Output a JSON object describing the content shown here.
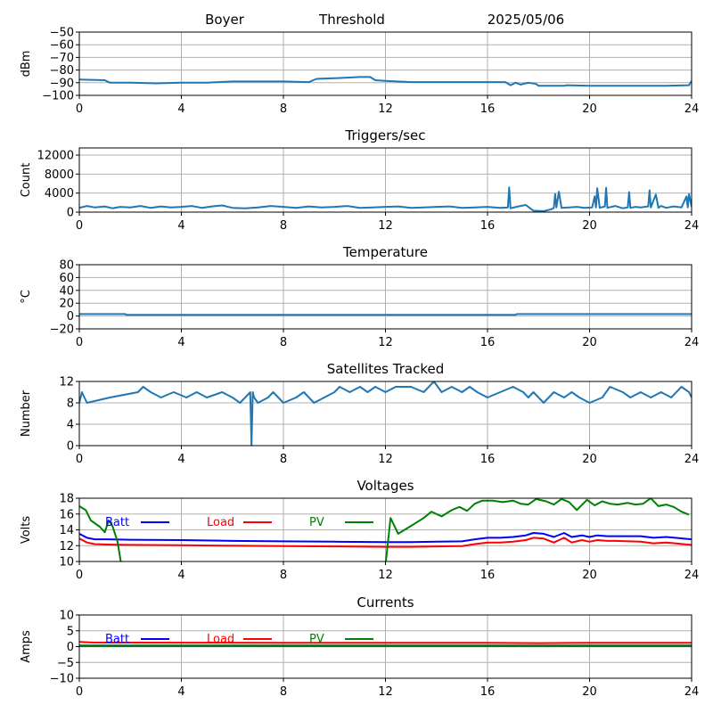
{
  "header": {
    "site": "Boyer",
    "mode": "Threshold",
    "date": "2025/05/06"
  },
  "chart_data": [
    {
      "id": "threshold",
      "type": "line",
      "title": "",
      "xlabel": "",
      "ylabel": "dBm",
      "xlim": [
        0,
        24
      ],
      "ylim": [
        -100,
        -50
      ],
      "xticks": [
        0,
        4,
        8,
        12,
        16,
        20,
        24
      ],
      "yticks": [
        -100,
        -90,
        -80,
        -70,
        -60,
        -50
      ],
      "grid": true,
      "series": [
        {
          "color": "#1f77b4",
          "x": [
            0,
            1,
            1.2,
            2,
            3,
            4,
            5,
            6,
            7,
            8,
            9,
            9.3,
            10,
            10.5,
            11,
            11.4,
            11.6,
            12,
            13,
            14,
            15,
            16,
            16.7,
            16.9,
            17.1,
            17.3,
            17.6,
            17.9,
            18,
            19,
            19.1,
            20,
            21,
            22,
            23,
            23.9,
            24
          ],
          "y": [
            -87.5,
            -88,
            -90,
            -90,
            -90.5,
            -90,
            -90,
            -89,
            -89,
            -89,
            -89.5,
            -87,
            -86.5,
            -86,
            -85.5,
            -85.5,
            -88,
            -88.5,
            -89.5,
            -89.5,
            -89.5,
            -89.5,
            -89.5,
            -92,
            -90,
            -91.5,
            -90,
            -91,
            -92.5,
            -92.5,
            -92,
            -92.5,
            -92.5,
            -92.5,
            -92.5,
            -92,
            -88.5
          ]
        }
      ]
    },
    {
      "id": "triggers",
      "type": "line",
      "title": "Triggers/sec",
      "xlabel": "",
      "ylabel": "Count",
      "xlim": [
        0,
        24
      ],
      "ylim": [
        0,
        13500
      ],
      "xticks": [
        0,
        4,
        8,
        12,
        16,
        20,
        24
      ],
      "yticks": [
        0,
        4000,
        8000,
        12000
      ],
      "grid": true,
      "series": [
        {
          "color": "#1f77b4",
          "x": [
            0,
            0.3,
            0.6,
            1,
            1.3,
            1.6,
            2,
            2.4,
            2.8,
            3.2,
            3.6,
            4,
            4.4,
            4.8,
            5.2,
            5.6,
            6,
            6.5,
            7,
            7.5,
            8,
            8.5,
            9,
            9.5,
            10,
            10.5,
            11,
            11.5,
            12,
            12.5,
            13,
            13.5,
            14,
            14.5,
            15,
            15.5,
            16,
            16.5,
            16.8,
            16.85,
            16.9,
            17.2,
            17.5,
            17.8,
            18.2,
            18.5,
            18.6,
            18.65,
            18.7,
            18.8,
            18.9,
            19.2,
            19.5,
            19.8,
            20.1,
            20.2,
            20.25,
            20.3,
            20.4,
            20.6,
            20.65,
            20.7,
            21,
            21.3,
            21.5,
            21.55,
            21.6,
            21.8,
            22,
            22.3,
            22.35,
            22.4,
            22.6,
            22.7,
            22.75,
            22.8,
            23,
            23.3,
            23.6,
            23.8,
            23.85,
            23.9,
            24
          ],
          "y": [
            900,
            1300,
            1000,
            1200,
            800,
            1100,
            1000,
            1300,
            900,
            1200,
            1000,
            1100,
            1300,
            900,
            1200,
            1400,
            900,
            800,
            1000,
            1300,
            1100,
            900,
            1200,
            1000,
            1100,
            1300,
            900,
            1000,
            1100,
            1200,
            900,
            1000,
            1100,
            1200,
            900,
            1000,
            1100,
            900,
            1000,
            5200,
            800,
            1200,
            1500,
            300,
            200,
            600,
            900,
            3800,
            1000,
            4300,
            900,
            1000,
            1100,
            900,
            1000,
            3300,
            1000,
            5000,
            900,
            1200,
            5100,
            900,
            1300,
            800,
            1000,
            4200,
            900,
            1100,
            1000,
            1200,
            4600,
            1000,
            3700,
            900,
            1100,
            1300,
            900,
            1200,
            1000,
            3300,
            1000,
            3800,
            1100
          ]
        }
      ]
    },
    {
      "id": "temperature",
      "type": "line",
      "title": "Temperature",
      "xlabel": "",
      "ylabel": "°C",
      "xlim": [
        0,
        24
      ],
      "ylim": [
        -20,
        80
      ],
      "xticks": [
        0,
        4,
        8,
        12,
        16,
        20,
        24
      ],
      "yticks": [
        -20,
        0,
        20,
        40,
        60,
        80
      ],
      "grid": true,
      "series": [
        {
          "color": "#1f77b4",
          "x": [
            0,
            1.8,
            1.85,
            2,
            17.1,
            17.15,
            24
          ],
          "y": [
            3,
            3,
            2,
            2,
            2,
            3,
            3
          ]
        }
      ]
    },
    {
      "id": "satellites",
      "type": "line",
      "title": "Satellites Tracked",
      "xlabel": "",
      "ylabel": "Number",
      "xlim": [
        0,
        24
      ],
      "ylim": [
        0,
        12
      ],
      "xticks": [
        0,
        4,
        8,
        12,
        16,
        20,
        24
      ],
      "yticks": [
        0,
        4,
        8,
        12
      ],
      "grid": true,
      "series": [
        {
          "color": "#1f77b4",
          "x": [
            0,
            0.1,
            0.2,
            0.3,
            1.2,
            2.3,
            2.5,
            2.8,
            3.2,
            3.7,
            4.2,
            4.6,
            5,
            5.6,
            6,
            6.3,
            6.5,
            6.7,
            6.75,
            6.8,
            6.85,
            7,
            7.4,
            7.6,
            8,
            8.5,
            8.8,
            9.2,
            9.6,
            10,
            10.2,
            10.6,
            11,
            11.3,
            11.6,
            12,
            12.4,
            13,
            13.5,
            13.9,
            14.2,
            14.6,
            15,
            15.3,
            15.6,
            16,
            16.5,
            17,
            17.4,
            17.6,
            17.8,
            18,
            18.2,
            18.6,
            19,
            19.3,
            19.6,
            20,
            20.5,
            20.8,
            21.3,
            21.6,
            22,
            22.4,
            22.8,
            23.2,
            23.6,
            23.9,
            24
          ],
          "y": [
            8,
            10,
            9,
            8,
            9,
            10,
            11,
            10,
            9,
            10,
            9,
            10,
            9,
            10,
            9,
            8,
            9,
            10,
            0,
            10,
            9,
            8,
            9,
            10,
            8,
            9,
            10,
            8,
            9,
            10,
            11,
            10,
            11,
            10,
            11,
            10,
            11,
            11,
            10,
            12,
            10,
            11,
            10,
            11,
            10,
            9,
            10,
            11,
            10,
            9,
            10,
            9,
            8,
            10,
            9,
            10,
            9,
            8,
            9,
            11,
            10,
            9,
            10,
            9,
            10,
            9,
            11,
            10,
            9
          ]
        }
      ]
    },
    {
      "id": "voltages",
      "type": "line",
      "title": "Voltages",
      "xlabel": "",
      "ylabel": "Volts",
      "xlim": [
        0,
        24
      ],
      "ylim": [
        10,
        18
      ],
      "xticks": [
        0,
        4,
        8,
        12,
        16,
        20,
        24
      ],
      "yticks": [
        10,
        12,
        14,
        16,
        18
      ],
      "grid": true,
      "legend": "top-left",
      "series": [
        {
          "name": "Batt",
          "color": "#0000ff",
          "x": [
            0,
            0.3,
            0.6,
            1,
            2,
            4,
            6,
            8,
            10,
            12,
            13,
            14,
            15,
            15.5,
            16,
            16.5,
            17,
            17.5,
            17.8,
            18.2,
            18.6,
            19,
            19.3,
            19.7,
            20,
            20.3,
            20.7,
            21,
            22,
            22.5,
            23,
            24
          ],
          "y": [
            13.5,
            13,
            12.8,
            12.8,
            12.75,
            12.7,
            12.6,
            12.55,
            12.5,
            12.45,
            12.45,
            12.5,
            12.55,
            12.8,
            13,
            13,
            13.1,
            13.3,
            13.6,
            13.5,
            13.1,
            13.6,
            13.1,
            13.3,
            13.1,
            13.3,
            13.2,
            13.2,
            13.2,
            13,
            13.1,
            12.8
          ]
        },
        {
          "name": "Load",
          "color": "#ff0000",
          "x": [
            0,
            0.3,
            0.6,
            1,
            2,
            4,
            6,
            8,
            10,
            12,
            13,
            14,
            15,
            15.5,
            16,
            16.5,
            17,
            17.5,
            17.8,
            18.2,
            18.6,
            19,
            19.3,
            19.7,
            20,
            20.3,
            20.7,
            21,
            22,
            22.5,
            23,
            24
          ],
          "y": [
            12.9,
            12.4,
            12.2,
            12.15,
            12.1,
            12.05,
            12,
            11.95,
            11.9,
            11.85,
            11.85,
            11.9,
            11.95,
            12.2,
            12.4,
            12.4,
            12.5,
            12.7,
            13,
            12.9,
            12.4,
            13,
            12.4,
            12.7,
            12.5,
            12.7,
            12.6,
            12.6,
            12.5,
            12.3,
            12.4,
            12.1
          ]
        },
        {
          "name": "PV",
          "color": "#008000",
          "x": [
            0,
            0.25,
            0.45,
            0.8,
            1,
            1.15,
            1.3,
            1.5,
            1.65,
            12,
            12.2,
            12.5,
            13,
            13.5,
            13.8,
            14.2,
            14.6,
            14.9,
            15.2,
            15.5,
            15.8,
            16.2,
            16.6,
            17,
            17.3,
            17.6,
            17.9,
            18.3,
            18.6,
            18.9,
            19.2,
            19.5,
            19.9,
            20.2,
            20.5,
            20.8,
            21.1,
            21.5,
            21.8,
            22.1,
            22.4,
            22.7,
            23,
            23.3,
            23.6,
            23.9
          ],
          "y": [
            17,
            16.5,
            15.2,
            14.4,
            13.7,
            15.2,
            14.5,
            12.5,
            9.5,
            9.5,
            15.5,
            13.5,
            14.5,
            15.5,
            16.3,
            15.7,
            16.5,
            16.9,
            16.4,
            17.3,
            17.7,
            17.7,
            17.5,
            17.7,
            17.3,
            17.2,
            17.9,
            17.6,
            17.2,
            17.9,
            17.5,
            16.5,
            17.8,
            17.1,
            17.6,
            17.3,
            17.2,
            17.4,
            17.2,
            17.3,
            18,
            17,
            17.2,
            16.9,
            16.3,
            15.9
          ]
        }
      ]
    },
    {
      "id": "currents",
      "type": "line",
      "title": "Currents",
      "xlabel": "",
      "ylabel": "Amps",
      "xlim": [
        0,
        24
      ],
      "ylim": [
        -10,
        10
      ],
      "xticks": [
        0,
        4,
        8,
        12,
        16,
        20,
        24
      ],
      "yticks": [
        -10,
        -5,
        0,
        5,
        10
      ],
      "grid": true,
      "legend": "top-left",
      "series": [
        {
          "name": "Batt",
          "color": "#0000ff",
          "x": [
            0,
            24
          ],
          "y": [
            0.3,
            0.3
          ]
        },
        {
          "name": "Load",
          "color": "#ff0000",
          "x": [
            0,
            0.5,
            4,
            8,
            12,
            16,
            18,
            20,
            24
          ],
          "y": [
            1.5,
            1.3,
            1.25,
            1.2,
            1.2,
            1.2,
            1.1,
            1.2,
            1.2
          ]
        },
        {
          "name": "PV",
          "color": "#008000",
          "x": [
            0,
            24
          ],
          "y": [
            0.1,
            0.1
          ]
        }
      ]
    }
  ]
}
